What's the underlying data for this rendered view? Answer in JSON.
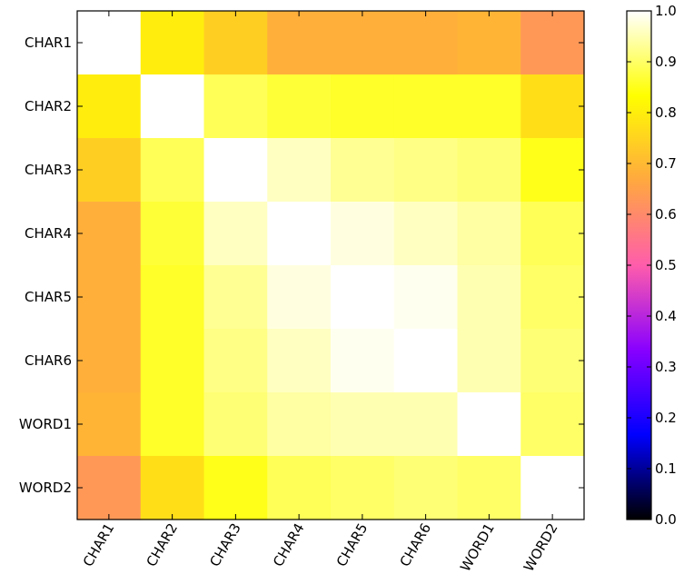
{
  "chart_data": {
    "type": "heatmap",
    "title": "",
    "xlabel": "",
    "ylabel": "",
    "x_categories": [
      "CHAR1",
      "CHAR2",
      "CHAR3",
      "CHAR4",
      "CHAR5",
      "CHAR6",
      "WORD1",
      "WORD2"
    ],
    "y_categories": [
      "CHAR1",
      "CHAR2",
      "CHAR3",
      "CHAR4",
      "CHAR5",
      "CHAR6",
      "WORD1",
      "WORD2"
    ],
    "values": [
      [
        1.0,
        0.8,
        0.74,
        0.68,
        0.68,
        0.68,
        0.69,
        0.63
      ],
      [
        0.8,
        1.0,
        0.89,
        0.87,
        0.86,
        0.86,
        0.86,
        0.77
      ],
      [
        0.74,
        0.89,
        1.0,
        0.96,
        0.93,
        0.92,
        0.91,
        0.85
      ],
      [
        0.68,
        0.87,
        0.96,
        1.0,
        0.98,
        0.96,
        0.94,
        0.89
      ],
      [
        0.68,
        0.86,
        0.93,
        0.98,
        1.0,
        0.99,
        0.95,
        0.9
      ],
      [
        0.68,
        0.86,
        0.92,
        0.96,
        0.99,
        1.0,
        0.95,
        0.91
      ],
      [
        0.69,
        0.86,
        0.91,
        0.94,
        0.95,
        0.95,
        1.0,
        0.9
      ],
      [
        0.63,
        0.77,
        0.85,
        0.89,
        0.9,
        0.91,
        0.9,
        1.0
      ]
    ],
    "colorbar": {
      "min": 0.0,
      "max": 1.0,
      "ticks": [
        "0.0",
        "0.1",
        "0.2",
        "0.3",
        "0.4",
        "0.5",
        "0.6",
        "0.7",
        "0.8",
        "0.9",
        "1.0"
      ],
      "colormap": "gnuplot2",
      "stops": [
        "#000000",
        "#0000ff",
        "#8800ff",
        "#ff5dab",
        "#ffa83f",
        "#ffff00",
        "#ffffff"
      ]
    },
    "grid": false,
    "legend": "colorbar-right"
  }
}
